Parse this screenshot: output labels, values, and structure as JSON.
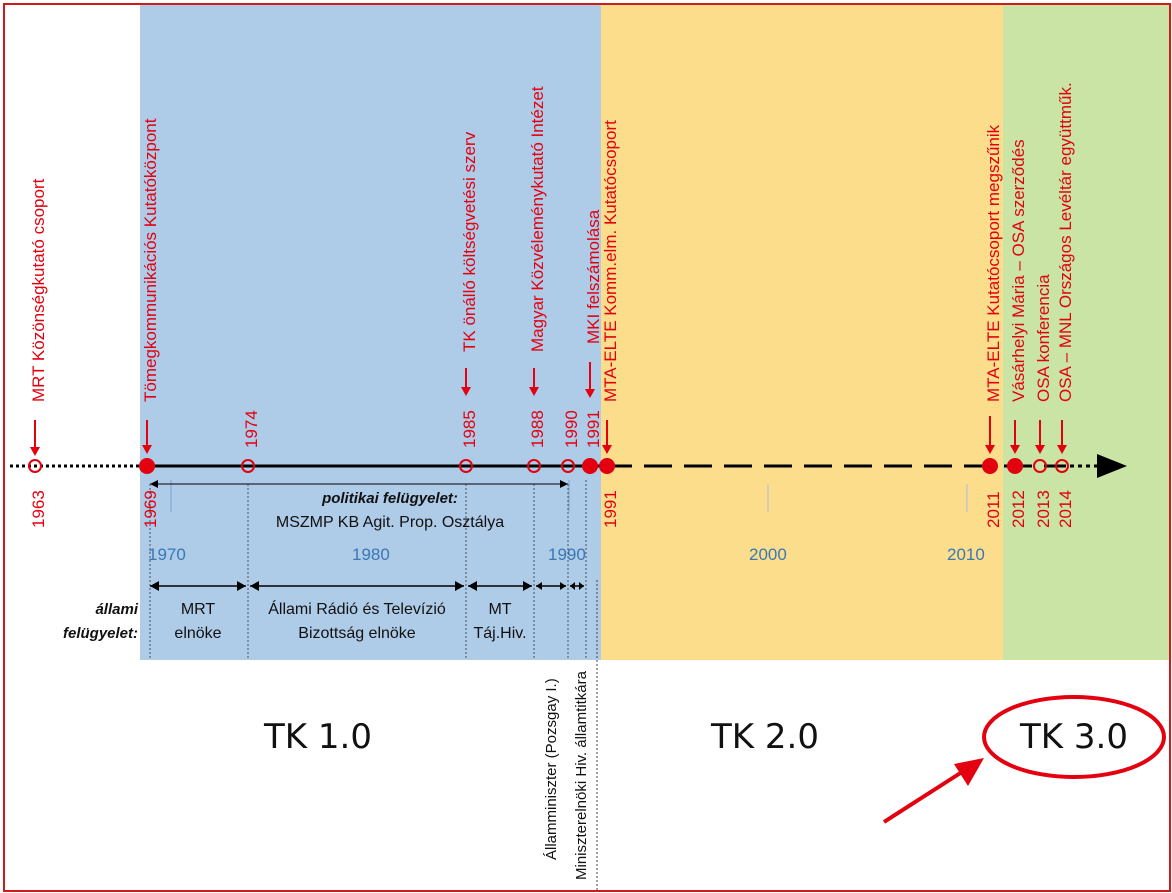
{
  "eras": [
    {
      "label": "TK 1.0",
      "color": "#aecbe8"
    },
    {
      "label": "TK 2.0",
      "color": "#fcdd8c"
    },
    {
      "label": "TK 3.0",
      "color": "#c9e4a5",
      "highlighted": true
    }
  ],
  "decades": [
    "1970",
    "1980",
    "1990",
    "2000",
    "2010"
  ],
  "events": [
    {
      "year": "1963",
      "text": "MRT Közönségkutató csoport",
      "marker": "hollow"
    },
    {
      "year": "1969",
      "text": "Tömegkommunikációs Kutatóközpont",
      "marker": "filled"
    },
    {
      "year": "1974",
      "text": "",
      "marker": "hollow"
    },
    {
      "year": "1985",
      "text": "TK önálló költségvetési szerv",
      "marker": "hollow"
    },
    {
      "year": "1988",
      "text": "Magyar Közvéleménykutató Intézet",
      "marker": "hollow"
    },
    {
      "year": "1990",
      "text": "",
      "marker": "hollow"
    },
    {
      "year": "1991",
      "text": "MKI felszámolása",
      "marker": "filled"
    },
    {
      "year": "1991",
      "text": "MTA-ELTE Komm.elm. Kutatócsoport",
      "marker": "filled"
    },
    {
      "year": "2011",
      "text": "MTA-ELTE Kutatócsoport megszűnik",
      "marker": "filled"
    },
    {
      "year": "2012",
      "text": "Vásárhelyi Mária – OSA szerződés",
      "marker": "filled"
    },
    {
      "year": "2013",
      "text": "OSA konferencia",
      "marker": "hollow"
    },
    {
      "year": "2014",
      "text": "OSA – MNL Országos Levéltár együttműk.",
      "marker": "hollow"
    }
  ],
  "political": {
    "label": "politikai felügyelet:",
    "body": "MSZMP KB Agit. Prop. Osztálya"
  },
  "state": {
    "label_line1": "állami",
    "label_line2": "felügyelet:",
    "periods": [
      {
        "line1": "MRT",
        "line2": "elnöke"
      },
      {
        "line1": "Állami Rádió és Televízió",
        "line2": "Bizottság elnöke"
      },
      {
        "line1": "MT",
        "line2": "Táj.Hiv."
      }
    ],
    "vertical": [
      "Államminiszter (Pozsgay I.)",
      "Miniszterelnöki Hiv. államtitkára"
    ]
  }
}
